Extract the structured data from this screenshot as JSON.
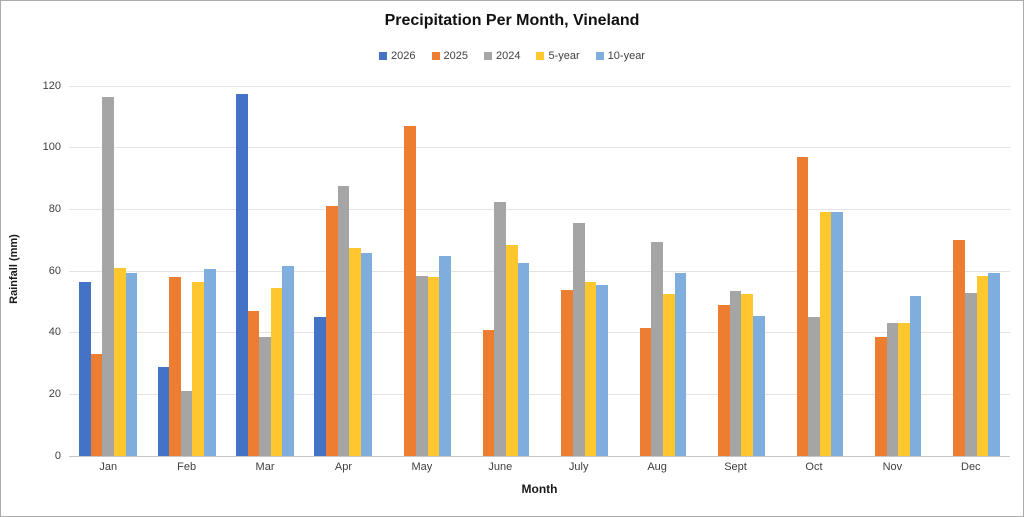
{
  "chart_data": {
    "type": "bar",
    "title": "Precipitation Per Month, Vineland",
    "xlabel": "Month",
    "ylabel": "Rainfall (mm)",
    "categories": [
      "Jan",
      "Feb",
      "Mar",
      "Apr",
      "May",
      "June",
      "July",
      "Aug",
      "Sept",
      "Oct",
      "Nov",
      "Dec"
    ],
    "series": [
      {
        "name": "2026",
        "color": "#4472C4",
        "values": [
          56.5,
          29,
          117.5,
          45,
          null,
          null,
          null,
          null,
          null,
          null,
          null,
          null
        ]
      },
      {
        "name": "2025",
        "color": "#ED7D31",
        "values": [
          33,
          58,
          47,
          81,
          107,
          41,
          54,
          41.5,
          49,
          97,
          38.5,
          70
        ]
      },
      {
        "name": "2024",
        "color": "#A5A5A5",
        "values": [
          116.5,
          21,
          38.5,
          87.5,
          58.5,
          82.5,
          75.5,
          69.5,
          53.5,
          45,
          43,
          53
        ]
      },
      {
        "name": "5-year",
        "color": "#FFC72E",
        "values": [
          61,
          56.5,
          54.5,
          67.5,
          58,
          68.5,
          56.5,
          52.5,
          52.5,
          79,
          43,
          58.5
        ]
      },
      {
        "name": "10-year",
        "color": "#7FAEDC",
        "values": [
          59.5,
          60.5,
          61.5,
          66,
          65,
          62.5,
          55.5,
          59.5,
          45.5,
          79,
          52,
          59.5
        ]
      }
    ],
    "yticks": [
      0,
      20,
      40,
      60,
      80,
      100,
      120
    ],
    "ylim": [
      0,
      120
    ],
    "legend_position": "top",
    "grid": "horizontal",
    "colors": {
      "gridline": "#e3e3e3",
      "axis_line": "#c6c6c6",
      "tick_text": "#404040",
      "title_text": "#111111"
    }
  }
}
